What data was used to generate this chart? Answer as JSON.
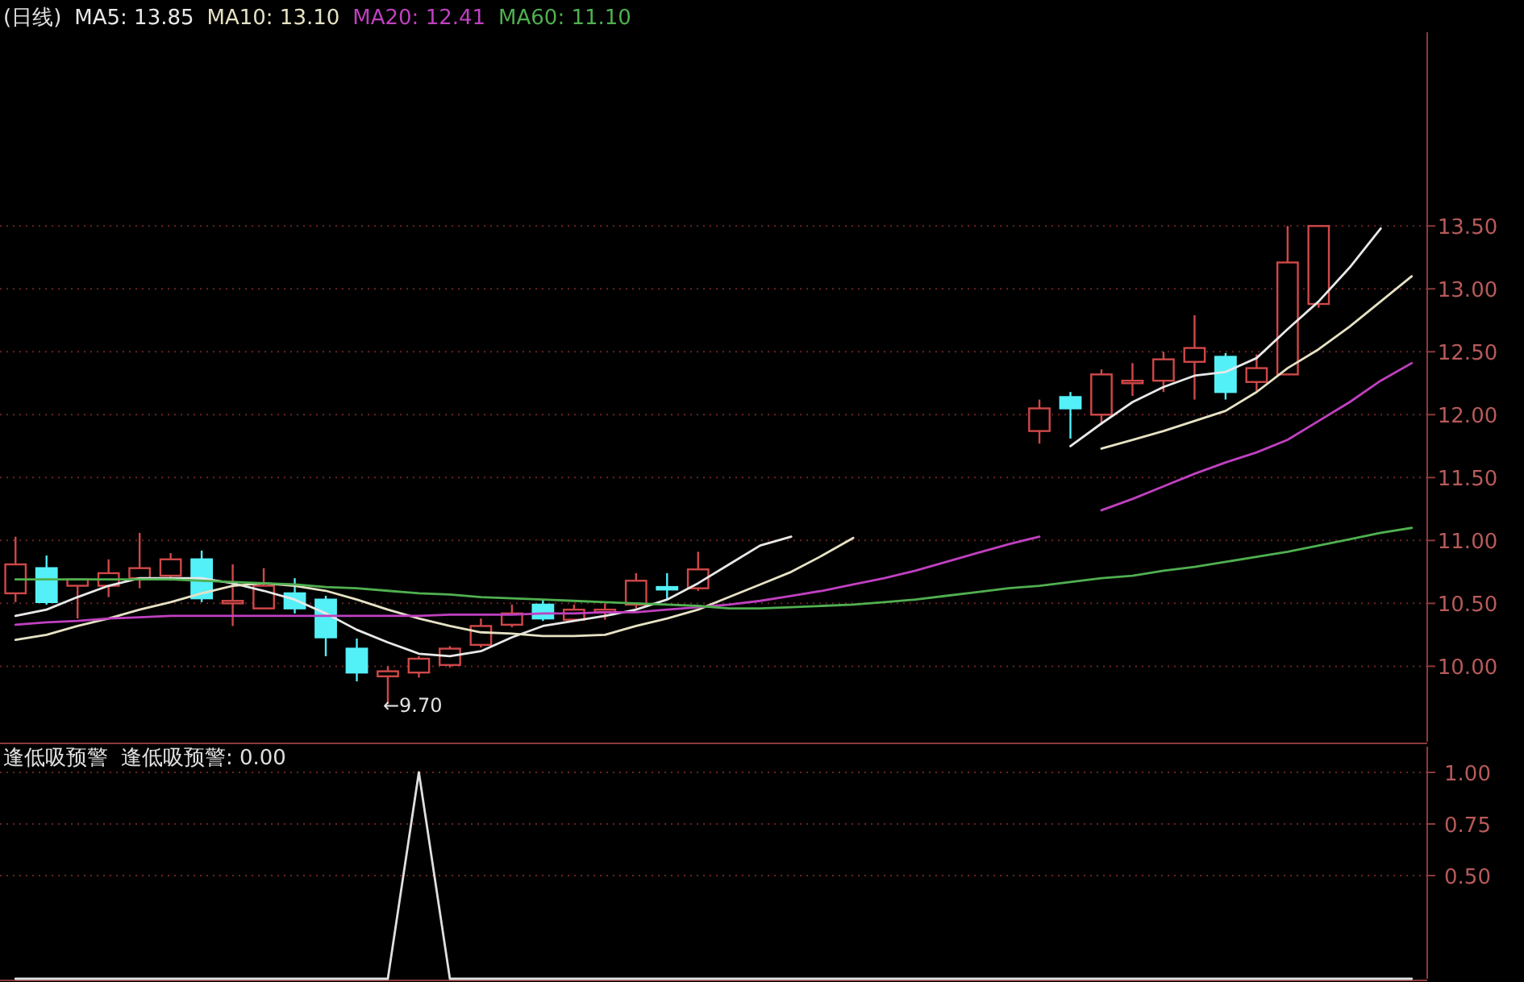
{
  "chart_data": [
    {
      "type": "candlestick",
      "title": "(日线)",
      "categories": [
        null,
        null,
        null,
        null,
        null,
        null,
        null,
        null,
        null,
        null,
        null,
        null,
        null,
        null,
        null,
        null,
        null,
        null,
        null,
        null,
        null,
        null,
        null,
        null,
        null,
        null,
        null,
        null,
        null,
        null,
        null,
        null,
        null,
        null,
        null,
        null,
        null,
        null,
        null,
        null,
        null,
        null,
        null,
        null,
        null,
        null
      ],
      "ohlc": [
        [
          10.58,
          11.03,
          10.51,
          10.81
        ],
        [
          10.78,
          10.88,
          10.49,
          10.51
        ],
        [
          10.64,
          10.7,
          10.38,
          10.69
        ],
        [
          10.64,
          10.85,
          10.55,
          10.74
        ],
        [
          10.7,
          11.06,
          10.62,
          10.78
        ],
        [
          10.72,
          10.9,
          10.68,
          10.85
        ],
        [
          10.85,
          10.92,
          10.51,
          10.54
        ],
        [
          10.5,
          10.81,
          10.32,
          10.52
        ],
        [
          10.46,
          10.78,
          10.46,
          10.64
        ],
        [
          10.58,
          10.7,
          10.42,
          10.46
        ],
        [
          10.53,
          10.56,
          10.08,
          10.23
        ],
        [
          10.14,
          10.22,
          9.88,
          9.95
        ],
        [
          9.92,
          10.0,
          9.7,
          9.96
        ],
        [
          9.95,
          10.08,
          9.91,
          10.06
        ],
        [
          10.01,
          10.16,
          9.99,
          10.14
        ],
        [
          10.17,
          10.38,
          10.15,
          10.32
        ],
        [
          10.33,
          10.49,
          10.31,
          10.42
        ],
        [
          10.49,
          10.53,
          10.36,
          10.38
        ],
        [
          10.37,
          10.49,
          10.36,
          10.45
        ],
        [
          10.43,
          10.5,
          10.37,
          10.45
        ],
        [
          10.49,
          10.74,
          10.46,
          10.68
        ],
        [
          10.63,
          10.74,
          10.53,
          10.61
        ],
        [
          10.62,
          10.91,
          10.6,
          10.77
        ],
        null,
        null,
        null,
        null,
        null,
        null,
        null,
        null,
        null,
        null,
        [
          11.87,
          12.12,
          11.77,
          12.05
        ],
        [
          12.14,
          12.18,
          11.81,
          12.05
        ],
        [
          12.0,
          12.36,
          11.92,
          12.32
        ],
        [
          12.25,
          12.41,
          12.15,
          12.27
        ],
        [
          12.27,
          12.5,
          12.18,
          12.44
        ],
        [
          12.42,
          12.79,
          12.12,
          12.53
        ],
        [
          12.46,
          12.49,
          12.12,
          12.18
        ],
        [
          12.26,
          12.48,
          12.19,
          12.37
        ],
        [
          12.32,
          13.5,
          12.32,
          13.21
        ],
        [
          12.88,
          13.5,
          12.85,
          13.5
        ],
        null,
        null,
        null
      ],
      "series": [
        {
          "type": "line",
          "name": "MA5: 13.85",
          "color": "#e8e8e8",
          "values": [
            10.4,
            10.45,
            10.55,
            10.64,
            10.7,
            10.7,
            10.7,
            10.66,
            10.6,
            10.53,
            10.42,
            10.29,
            10.19,
            10.1,
            10.08,
            10.12,
            10.23,
            10.32,
            10.36,
            10.4,
            10.45,
            10.53,
            10.66,
            10.81,
            10.96,
            11.03,
            null,
            null,
            null,
            null,
            null,
            null,
            null,
            null,
            11.75,
            11.93,
            12.1,
            12.22,
            12.31,
            12.34,
            12.45,
            12.68,
            12.9,
            13.17,
            13.48,
            null
          ]
        },
        {
          "type": "line",
          "name": "MA10: 13.10",
          "color": "#e6e2c4",
          "values": [
            10.21,
            10.25,
            10.32,
            10.38,
            10.45,
            10.51,
            10.58,
            10.64,
            10.66,
            10.64,
            10.6,
            10.53,
            10.45,
            10.38,
            10.32,
            10.27,
            10.26,
            10.24,
            10.24,
            10.25,
            10.32,
            10.38,
            10.45,
            10.55,
            10.65,
            10.75,
            10.88,
            11.02,
            null,
            null,
            null,
            null,
            null,
            null,
            null,
            11.73,
            11.8,
            11.87,
            11.95,
            12.03,
            12.18,
            12.37,
            12.52,
            12.7,
            12.9,
            13.1
          ]
        },
        {
          "type": "line",
          "name": "MA20: 12.41",
          "color": "#c040c0",
          "values": [
            10.33,
            10.35,
            10.36,
            10.38,
            10.39,
            10.4,
            10.4,
            10.4,
            10.4,
            10.4,
            10.4,
            10.4,
            10.4,
            10.4,
            10.41,
            10.41,
            10.41,
            10.42,
            10.42,
            10.43,
            10.43,
            10.45,
            10.47,
            10.49,
            10.52,
            10.56,
            10.6,
            10.65,
            10.7,
            10.76,
            10.83,
            10.9,
            10.97,
            11.03,
            null,
            11.24,
            11.33,
            11.43,
            11.53,
            11.62,
            11.7,
            11.8,
            11.95,
            12.1,
            12.27,
            12.41
          ]
        },
        {
          "type": "line",
          "name": "MA60: 11.10",
          "color": "#50b050",
          "values": [
            10.69,
            10.69,
            10.69,
            10.69,
            10.69,
            10.69,
            10.68,
            10.67,
            10.66,
            10.65,
            10.63,
            10.62,
            10.6,
            10.58,
            10.57,
            10.55,
            10.54,
            10.53,
            10.52,
            10.51,
            10.5,
            10.49,
            10.48,
            10.46,
            10.46,
            10.47,
            10.48,
            10.49,
            10.51,
            10.53,
            10.56,
            10.59,
            10.62,
            10.64,
            10.67,
            10.7,
            10.72,
            10.76,
            10.79,
            10.83,
            10.87,
            10.91,
            10.96,
            11.01,
            11.06,
            11.1
          ]
        }
      ],
      "ylim": [
        9.4,
        15.04
      ],
      "yticks": [
        {
          "value": 10,
          "label": "10.00"
        },
        {
          "value": 10.5,
          "label": "10.50"
        },
        {
          "value": 11,
          "label": "11.00"
        },
        {
          "value": 11.5,
          "label": "11.50"
        },
        {
          "value": 12,
          "label": "12.00"
        },
        {
          "value": 12.5,
          "label": "12.50"
        },
        {
          "value": 13,
          "label": "13.00"
        },
        {
          "value": 13.5,
          "label": "13.50"
        }
      ],
      "grid": "y",
      "legend": "top left",
      "tick_labels": "y",
      "annotations": [
        "←9.70"
      ]
    },
    {
      "type": "line",
      "title": "逢低吸预警",
      "categories": [
        null,
        null,
        null,
        null,
        null,
        null,
        null,
        null,
        null,
        null,
        null,
        null,
        null,
        null,
        null,
        null,
        null,
        null,
        null,
        null,
        null,
        null,
        null,
        null,
        null,
        null,
        null,
        null,
        null,
        null,
        null,
        null,
        null,
        null,
        null,
        null,
        null,
        null,
        null,
        null,
        null,
        null,
        null,
        null,
        null,
        null
      ],
      "series": [
        {
          "name": "逢低吸预警: 0.00",
          "color": "#e0e0e0",
          "values": [
            0,
            0,
            0,
            0,
            0,
            0,
            0,
            0,
            0,
            0,
            0,
            0,
            0,
            1,
            0,
            0,
            0,
            0,
            0,
            0,
            0,
            0,
            0,
            0,
            0,
            0,
            0,
            0,
            0,
            0,
            0,
            0,
            0,
            0,
            0,
            0,
            0,
            0,
            0,
            0,
            0,
            0,
            0,
            0,
            0,
            0
          ]
        }
      ],
      "ylim": [
        0,
        1.125
      ],
      "yticks": [
        {
          "value": 0.5,
          "label": "0.50"
        },
        {
          "value": 0.75,
          "label": "0.75"
        },
        {
          "value": 1,
          "label": "1.00"
        }
      ],
      "grid": "y",
      "legend": "top left",
      "tick_labels": "y"
    }
  ]
}
